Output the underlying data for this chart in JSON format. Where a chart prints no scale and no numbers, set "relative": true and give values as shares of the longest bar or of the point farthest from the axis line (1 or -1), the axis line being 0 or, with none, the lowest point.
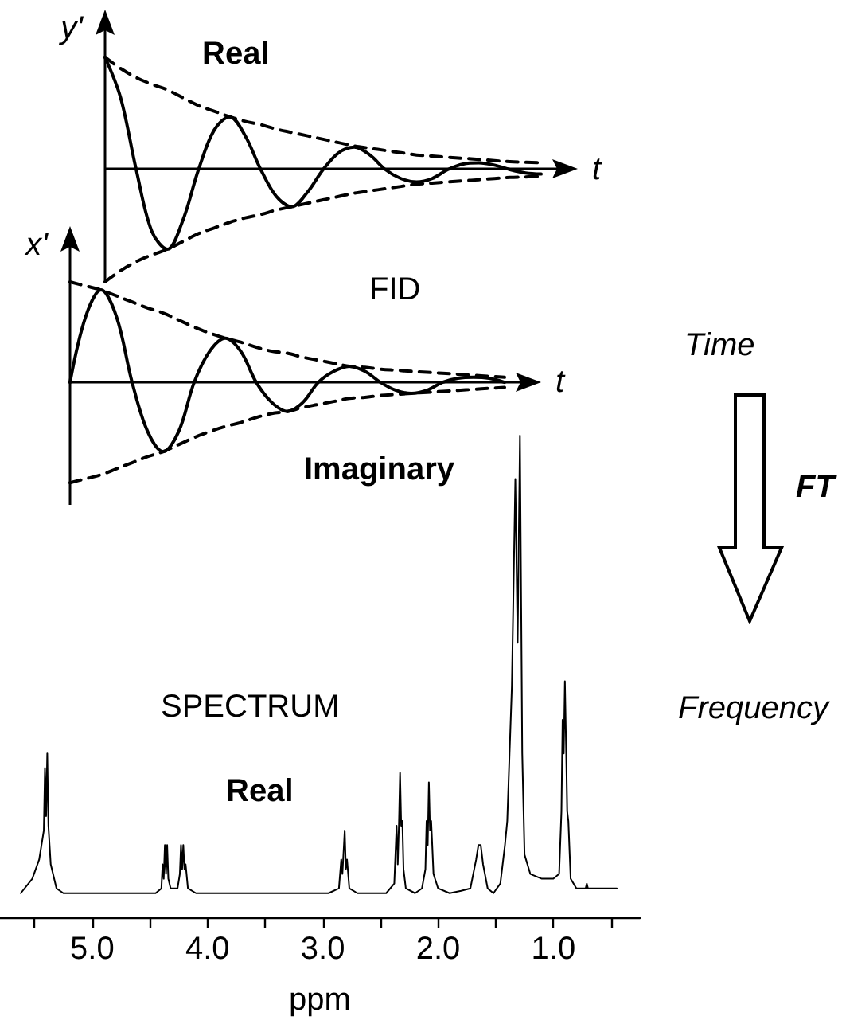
{
  "chart_data": [
    {
      "type": "line",
      "title": "Real",
      "xlabel": "t",
      "ylabel": "y'",
      "relative": true,
      "marker": "none",
      "categories": [
        null,
        null,
        null,
        null,
        null,
        null,
        null,
        null,
        null,
        null,
        null,
        null,
        null,
        null,
        null,
        null,
        null,
        null,
        null,
        null,
        null,
        null,
        null,
        null,
        null,
        null,
        null,
        null,
        null
      ],
      "series": [
        {
          "color": "#000000",
          "line_style": "solid",
          "values": [
            1,
            0.64,
            0,
            -0.55,
            -0.71,
            -0.45,
            0,
            0.35,
            0.47,
            0.3,
            0,
            -0.24,
            -0.33,
            -0.2,
            0,
            0.15,
            0.2,
            0.13,
            0,
            -0.08,
            -0.11,
            -0.08,
            0,
            0.05,
            0.06,
            0.04,
            0,
            -0.03,
            -0.04
          ]
        },
        {
          "color": "#000000",
          "line_style": "dashed",
          "values": [
            1,
            0.9,
            0.82,
            0.76,
            0.71,
            0.64,
            0.57,
            0.52,
            0.47,
            0.43,
            0.4,
            0.36,
            0.33,
            0.3,
            0.27,
            0.24,
            0.21,
            0.19,
            0.17,
            0.15,
            0.13,
            0.12,
            0.11,
            0.1,
            0.09,
            0.08,
            0.07,
            0.065,
            0.06
          ]
        },
        {
          "color": "#000000",
          "line_style": "dashed",
          "values": [
            -1,
            -0.9,
            -0.82,
            -0.76,
            -0.71,
            -0.64,
            -0.57,
            -0.52,
            -0.47,
            -0.43,
            -0.4,
            -0.36,
            -0.33,
            -0.3,
            -0.27,
            -0.24,
            -0.21,
            -0.19,
            -0.17,
            -0.15,
            -0.13,
            -0.12,
            -0.11,
            -0.1,
            -0.09,
            -0.08,
            -0.07,
            -0.065,
            -0.06
          ]
        }
      ]
    },
    {
      "type": "line",
      "title": "Imaginary",
      "xlabel": "t",
      "ylabel": "x'",
      "relative": true,
      "marker": "none",
      "annotations": [
        "FID"
      ],
      "categories": [
        null,
        null,
        null,
        null,
        null,
        null,
        null,
        null,
        null,
        null,
        null,
        null,
        null,
        null,
        null,
        null,
        null,
        null,
        null,
        null,
        null,
        null,
        null,
        null,
        null,
        null,
        null,
        null,
        null
      ],
      "series": [
        {
          "color": "#000000",
          "line_style": "solid",
          "values": [
            0,
            0.65,
            0.92,
            0.65,
            0,
            -0.49,
            -0.69,
            -0.49,
            0,
            0.31,
            0.44,
            0.31,
            0,
            -0.2,
            -0.29,
            -0.2,
            0,
            0.11,
            0.16,
            0.11,
            0,
            -0.08,
            -0.11,
            -0.08,
            0,
            0.04,
            0.05,
            0.04,
            0
          ]
        },
        {
          "color": "#000000",
          "line_style": "dashed",
          "values": [
            1,
            0.96,
            0.92,
            0.86,
            0.8,
            0.74,
            0.69,
            0.62,
            0.55,
            0.49,
            0.44,
            0.4,
            0.35,
            0.31,
            0.29,
            0.25,
            0.22,
            0.19,
            0.16,
            0.15,
            0.13,
            0.12,
            0.11,
            0.1,
            0.09,
            0.08,
            0.07,
            0.06,
            0.05
          ]
        },
        {
          "color": "#000000",
          "line_style": "dashed",
          "values": [
            -1,
            -0.96,
            -0.92,
            -0.86,
            -0.8,
            -0.74,
            -0.69,
            -0.62,
            -0.55,
            -0.49,
            -0.44,
            -0.4,
            -0.35,
            -0.31,
            -0.29,
            -0.25,
            -0.22,
            -0.19,
            -0.16,
            -0.15,
            -0.13,
            -0.12,
            -0.11,
            -0.1,
            -0.09,
            -0.08,
            -0.07,
            -0.06,
            -0.05
          ]
        }
      ]
    },
    {
      "type": "line",
      "title": "SPECTRUM",
      "xlabel": "ppm",
      "relative": true,
      "marker": "none",
      "color": "#000000",
      "annotations": [
        "Real"
      ],
      "xlim": [
        5.8,
        0.25
      ],
      "xticks": [
        {
          "value": 5.5,
          "label": null
        },
        {
          "value": 5,
          "label": "5.0"
        },
        {
          "value": 4.5,
          "label": null
        },
        {
          "value": 4,
          "label": "4.0"
        },
        {
          "value": 3.5,
          "label": null
        },
        {
          "value": 3,
          "label": "3.0"
        },
        {
          "value": 2.5,
          "label": null
        },
        {
          "value": 2,
          "label": "2.0"
        },
        {
          "value": 1.5,
          "label": null
        },
        {
          "value": 1,
          "label": "1.0"
        },
        {
          "value": 0.5,
          "label": null
        }
      ],
      "x": [
        5.62,
        5.52,
        5.46,
        5.42,
        5.41,
        5.4,
        5.39,
        5.38,
        5.36,
        5.34,
        5.31,
        5.25,
        4.45,
        4.4,
        4.39,
        4.38,
        4.37,
        4.36,
        4.35,
        4.34,
        4.32,
        4.26,
        4.24,
        4.23,
        4.22,
        4.21,
        4.2,
        4.19,
        4.17,
        4.1,
        2.95,
        2.86,
        2.84,
        2.83,
        2.81,
        2.8,
        2.79,
        2.77,
        2.7,
        2.45,
        2.38,
        2.36,
        2.35,
        2.34,
        2.33,
        2.32,
        2.31,
        2.3,
        2.28,
        2.2,
        2.14,
        2.11,
        2.1,
        2.09,
        2.08,
        2.07,
        2.06,
        2.04,
        2,
        1.9,
        1.8,
        1.72,
        1.67,
        1.65,
        1.63,
        1.61,
        1.57,
        1.52,
        1.46,
        1.42,
        1.4,
        1.38,
        1.36,
        1.33,
        1.31,
        1.29,
        1.27,
        1.25,
        1.2,
        1.1,
        1,
        0.95,
        0.93,
        0.92,
        0.91,
        0.9,
        0.89,
        0.88,
        0.87,
        0.85,
        0.8,
        0.72,
        0.71,
        0.7,
        0.45
      ],
      "values": [
        0.05,
        0.08,
        0.12,
        0.18,
        0.31,
        0.21,
        0.34,
        0.19,
        0.11,
        0.09,
        0.06,
        0.05,
        0.05,
        0.06,
        0.11,
        0.08,
        0.15,
        0.09,
        0.15,
        0.08,
        0.06,
        0.06,
        0.09,
        0.15,
        0.1,
        0.15,
        0.1,
        0.11,
        0.06,
        0.05,
        0.05,
        0.06,
        0.12,
        0.09,
        0.18,
        0.1,
        0.12,
        0.06,
        0.05,
        0.05,
        0.07,
        0.19,
        0.11,
        0.19,
        0.3,
        0.19,
        0.2,
        0.1,
        0.06,
        0.05,
        0.06,
        0.1,
        0.2,
        0.15,
        0.28,
        0.18,
        0.2,
        0.09,
        0.06,
        0.05,
        0.055,
        0.06,
        0.12,
        0.15,
        0.15,
        0.11,
        0.06,
        0.05,
        0.07,
        0.15,
        0.2,
        0.34,
        0.48,
        0.91,
        0.57,
        1,
        0.34,
        0.13,
        0.09,
        0.08,
        0.08,
        0.09,
        0.22,
        0.41,
        0.34,
        0.49,
        0.36,
        0.22,
        0.2,
        0.08,
        0.06,
        0.06,
        0.07,
        0.06,
        0.06
      ]
    },
    {
      "type": "other",
      "annotations": [
        "Time",
        "FT",
        "Frequency"
      ]
    }
  ]
}
